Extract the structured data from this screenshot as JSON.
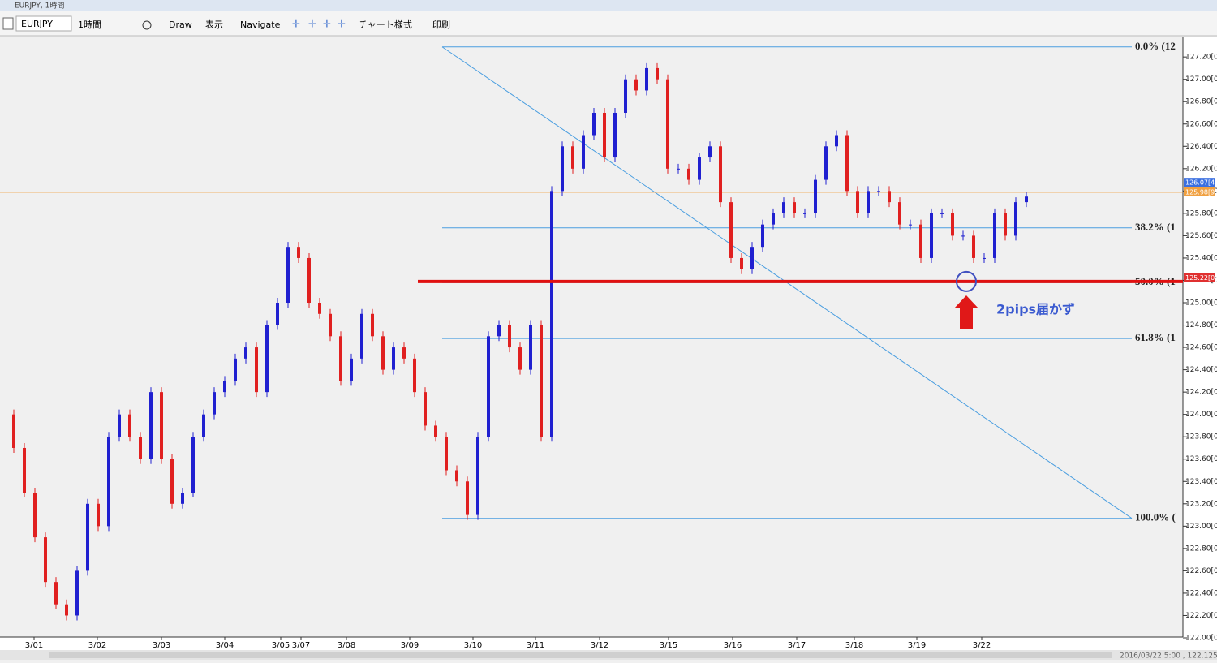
{
  "window": {
    "title": "EURJPY, 1時間"
  },
  "toolbar": {
    "symbol": "EURJPY",
    "timeframe": "1時間",
    "items": [
      "Draw",
      "表示",
      "Navigate",
      "チャート様式",
      "印刷"
    ]
  },
  "status": "2016/03/22 5:00 , 122.125",
  "chart_data": {
    "type": "candlestick",
    "x_labels": [
      "3/01",
      "3/02",
      "3/03",
      "3/04",
      "3/05",
      "3/07",
      "3/08",
      "3/09",
      "3/10",
      "3/11",
      "3/12",
      "3/15",
      "3/16",
      "3/17",
      "3/18",
      "3/19",
      "3/22"
    ],
    "values": [
      124.0,
      123.7,
      123.3,
      122.9,
      122.5,
      122.3,
      122.2,
      122.6,
      123.2,
      123.0,
      123.8,
      124.0,
      123.8,
      123.6,
      124.2,
      123.6,
      123.2,
      123.3,
      123.8,
      124.0,
      124.2,
      124.3,
      124.5,
      124.6,
      124.2,
      124.8,
      125.0,
      125.5,
      125.4,
      125.0,
      124.9,
      124.7,
      124.3,
      124.5,
      124.9,
      124.7,
      124.4,
      124.6,
      124.5,
      124.2,
      123.9,
      123.8,
      123.5,
      123.4,
      123.1,
      123.8,
      124.7,
      124.8,
      124.6,
      124.4,
      124.8,
      123.8,
      126.0,
      126.4,
      126.2,
      126.5,
      126.7,
      126.3,
      126.7,
      127.0,
      126.9,
      127.1,
      127.0,
      126.2,
      126.2,
      126.1,
      126.3,
      126.4,
      125.9,
      125.4,
      125.3,
      125.5,
      125.7,
      125.8,
      125.9,
      125.8,
      125.8,
      126.1,
      126.4,
      126.5,
      126.0,
      125.8,
      126.0,
      126.0,
      125.9,
      125.7,
      125.7,
      125.4,
      125.8,
      125.8,
      125.6,
      125.6,
      125.4,
      125.4,
      125.8,
      125.6,
      125.9,
      125.95
    ],
    "up_color": "#2020d0",
    "down_color": "#e02020",
    "ylim": [
      122.0,
      127.39
    ],
    "yticks": [
      {
        "value": 122.0,
        "label": "122.00[0]"
      },
      {
        "value": 122.2,
        "label": "122.20[0]"
      },
      {
        "value": 122.4,
        "label": "122.40[0]"
      },
      {
        "value": 122.6,
        "label": "122.60[0]"
      },
      {
        "value": 122.8,
        "label": "122.80[0]"
      },
      {
        "value": 123.0,
        "label": "123.00[0]"
      },
      {
        "value": 123.2,
        "label": "123.20[0]"
      },
      {
        "value": 123.4,
        "label": "123.40[0]"
      },
      {
        "value": 123.6,
        "label": "123.60[0]"
      },
      {
        "value": 123.8,
        "label": "123.80[0]"
      },
      {
        "value": 124.0,
        "label": "124.00[0]"
      },
      {
        "value": 124.2,
        "label": "124.20[0]"
      },
      {
        "value": 124.4,
        "label": "124.40[0]"
      },
      {
        "value": 124.6,
        "label": "124.60[0]"
      },
      {
        "value": 124.8,
        "label": "124.80[0]"
      },
      {
        "value": 125.0,
        "label": "125.00[0]"
      },
      {
        "value": 125.2,
        "label": "125.20[0]"
      },
      {
        "value": 125.4,
        "label": "125.40[0]"
      },
      {
        "value": 125.6,
        "label": "125.60[0]"
      },
      {
        "value": 125.8,
        "label": "125.80[0]"
      },
      {
        "value": 126.0,
        "label": "126.00[0]"
      },
      {
        "value": 126.2,
        "label": "126.20[0]"
      },
      {
        "value": 126.4,
        "label": "126.40[0]"
      },
      {
        "value": 126.6,
        "label": "126.60[0]"
      },
      {
        "value": 126.8,
        "label": "126.80[0]"
      },
      {
        "value": 127.0,
        "label": "127.00[0]"
      },
      {
        "value": 127.2,
        "label": "127.20[0]"
      }
    ],
    "fib_levels": [
      {
        "value": 127.29,
        "label": "0.0%  (12"
      },
      {
        "value": 125.67,
        "label": "38.2%  (1"
      },
      {
        "value": 125.18,
        "label": "50.0%  (1"
      },
      {
        "value": 124.68,
        "label": "61.8%  (1"
      },
      {
        "value": 123.07,
        "label": "100.0%  ("
      }
    ],
    "marked_level": 125.19,
    "current_price": 125.989,
    "price_tags": [
      {
        "value": 126.074,
        "label": "126.07[4]",
        "color": "#3a6fe0"
      },
      {
        "value": 125.989,
        "label": "125.98[9]",
        "color": "#f0a040"
      },
      {
        "value": 125.22,
        "label": "125.22[0]",
        "color": "#e03030"
      }
    ],
    "annotation": "2pips届かず"
  }
}
